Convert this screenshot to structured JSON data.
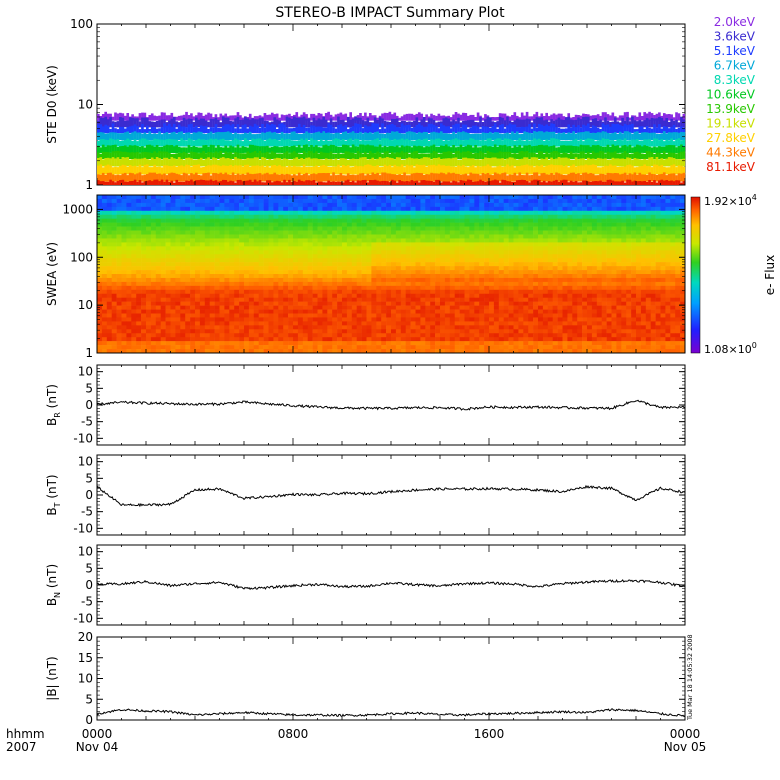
{
  "title": "STEREO-B IMPACT Summary Plot",
  "timestamp": "Tue Mar 18 14:05:32 2008",
  "time_axis": {
    "row1_label": "hhmm",
    "row2_label": "2007",
    "ticks": [
      {
        "hhmm": "0000",
        "date": "Nov 04",
        "hours": 0
      },
      {
        "hhmm": "0800",
        "date": "",
        "hours": 8
      },
      {
        "hhmm": "1600",
        "date": "",
        "hours": 16
      },
      {
        "hhmm": "0000",
        "date": "Nov 05",
        "hours": 24
      }
    ]
  },
  "colorbar": {
    "label": "e- Flux",
    "max_mant": "1.92×10",
    "max_exp": "4",
    "min_mant": "1.08×10",
    "min_exp": "0"
  },
  "chart_data": [
    {
      "type": "line",
      "panel": "ste",
      "ylabel": "STE D0 (keV)",
      "yscale": "log",
      "ylim": [
        1,
        100
      ],
      "yticks": [
        "1",
        "10",
        "100"
      ],
      "channels": [
        {
          "name": "2.0keV",
          "color": "#8a2be2",
          "level": 7.2
        },
        {
          "name": "3.6keV",
          "color": "#3a2bd0",
          "level": 6.3
        },
        {
          "name": "5.1keV",
          "color": "#1e3cff",
          "level": 5.2
        },
        {
          "name": "6.7keV",
          "color": "#00a8d8",
          "level": 4.4
        },
        {
          "name": "8.3keV",
          "color": "#00d8b0",
          "level": 3.6
        },
        {
          "name": "10.6keV",
          "color": "#00c820",
          "level": 3.0
        },
        {
          "name": "13.9keV",
          "color": "#28c800",
          "level": 2.5
        },
        {
          "name": "19.1keV",
          "color": "#c8e000",
          "level": 2.1
        },
        {
          "name": "27.8keV",
          "color": "#ffd000",
          "level": 1.7
        },
        {
          "name": "44.3keV",
          "color": "#ff7a00",
          "level": 1.35
        },
        {
          "name": "81.1keV",
          "color": "#e81a00",
          "level": 1.1
        }
      ]
    },
    {
      "type": "heatmap",
      "panel": "swea",
      "ylabel": "SWEA (eV)",
      "yscale": "log",
      "ylim": [
        1,
        2000
      ],
      "yticks": [
        "1",
        "10",
        "100",
        "1000"
      ],
      "value_range": [
        1.08,
        19200
      ]
    },
    {
      "type": "line",
      "panel": "br",
      "ylabel_main": "B",
      "ylabel_sub": "R",
      "ylabel_unit": " (nT)",
      "ylim": [
        -12,
        12
      ],
      "yticks": [
        "10",
        "5",
        "0",
        "-5",
        "-10"
      ],
      "x": [
        0,
        1,
        2,
        3,
        4,
        5,
        6,
        7,
        8,
        9,
        10,
        11,
        12,
        13,
        14,
        15,
        16,
        17,
        18,
        19,
        20,
        21,
        22,
        23,
        24
      ],
      "y": [
        0.2,
        0.8,
        0.6,
        0.4,
        0.2,
        0.3,
        0.9,
        0.3,
        -0.2,
        -0.6,
        -0.9,
        -1.0,
        -1.0,
        -0.8,
        -0.8,
        -1.2,
        -0.6,
        -0.7,
        -0.6,
        -0.8,
        -0.9,
        -1.0,
        1.4,
        -0.8,
        -0.6
      ]
    },
    {
      "type": "line",
      "panel": "bt",
      "ylabel_main": "B",
      "ylabel_sub": "T",
      "ylabel_unit": " (nT)",
      "ylim": [
        -12,
        12
      ],
      "yticks": [
        "10",
        "5",
        "0",
        "-5",
        "-10"
      ],
      "x": [
        0,
        1,
        2,
        3,
        4,
        5,
        6,
        7,
        8,
        9,
        10,
        11,
        12,
        13,
        14,
        15,
        16,
        17,
        18,
        19,
        20,
        21,
        22,
        23,
        24
      ],
      "y": [
        2.5,
        -3.0,
        -3.0,
        -2.8,
        1.5,
        1.8,
        -1.0,
        -0.5,
        0.2,
        0.0,
        0.5,
        0.4,
        1.0,
        1.5,
        1.8,
        1.8,
        1.9,
        1.8,
        1.5,
        1.0,
        2.5,
        2.0,
        -1.5,
        2.0,
        0.8
      ]
    },
    {
      "type": "line",
      "panel": "bn",
      "ylabel_main": "B",
      "ylabel_sub": "N",
      "ylabel_unit": " (nT)",
      "ylim": [
        -12,
        12
      ],
      "yticks": [
        "10",
        "5",
        "0",
        "-5",
        "-10"
      ],
      "x": [
        0,
        1,
        2,
        3,
        4,
        5,
        6,
        7,
        8,
        9,
        10,
        11,
        12,
        13,
        14,
        15,
        16,
        17,
        18,
        19,
        20,
        21,
        22,
        23,
        24
      ],
      "y": [
        0.2,
        0.3,
        1.0,
        -0.2,
        0.4,
        0.8,
        -1.0,
        -0.8,
        -0.2,
        0.2,
        -0.5,
        -0.4,
        0.6,
        0.1,
        -0.3,
        0.4,
        0.6,
        0.3,
        -0.5,
        0.4,
        0.9,
        1.2,
        1.3,
        0.8,
        -0.4
      ]
    },
    {
      "type": "line",
      "panel": "bmag",
      "ylabel_main": "|B| (nT)",
      "ylim": [
        0,
        20
      ],
      "yticks": [
        "20",
        "15",
        "10",
        "5",
        "0"
      ],
      "x": [
        0,
        1,
        2,
        3,
        4,
        5,
        6,
        7,
        8,
        9,
        10,
        11,
        12,
        13,
        14,
        15,
        16,
        17,
        18,
        19,
        20,
        21,
        22,
        23,
        24
      ],
      "y": [
        1.5,
        2.5,
        2.2,
        2.0,
        1.2,
        1.5,
        1.8,
        1.5,
        1.2,
        1.2,
        1.1,
        1.2,
        1.5,
        1.7,
        1.3,
        1.2,
        1.5,
        1.6,
        1.8,
        2.0,
        1.8,
        2.5,
        2.3,
        1.5,
        1.0
      ]
    }
  ]
}
